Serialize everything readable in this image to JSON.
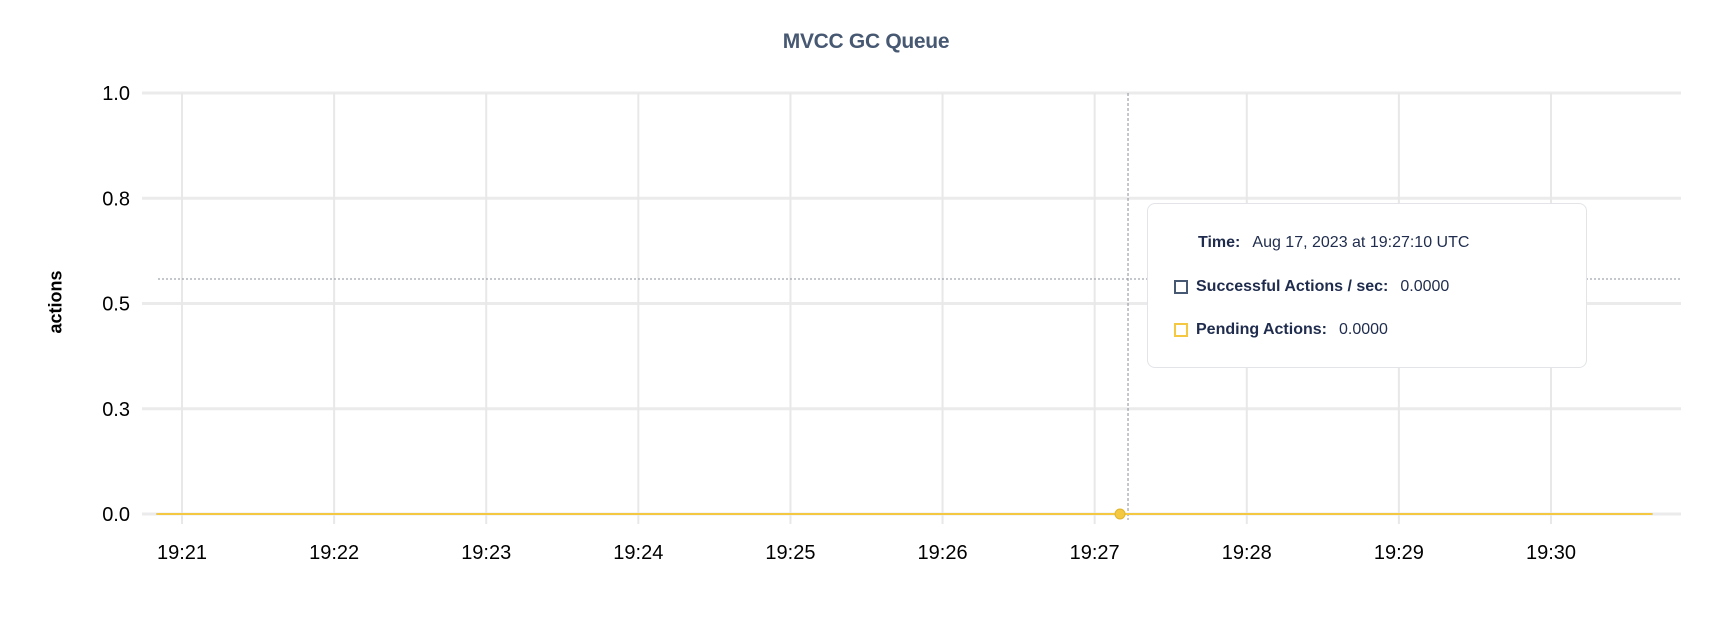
{
  "chart_data": {
    "type": "line",
    "title": "MVCC GC Queue",
    "ylabel": "actions",
    "xlabel": "",
    "ylim": [
      0,
      1
    ],
    "y_ticks": [
      0,
      0.25,
      0.5,
      0.75,
      1.0
    ],
    "y_tick_labels": [
      "0.0",
      "0.3",
      "0.5",
      "0.8",
      "1.0"
    ],
    "x_tick_labels": [
      "19:21",
      "19:22",
      "19:23",
      "19:24",
      "19:25",
      "19:26",
      "19:27",
      "19:28",
      "19:29",
      "19:30"
    ],
    "xlim": [
      "19:20:44",
      "19:30:50"
    ],
    "grid": true,
    "series": [
      {
        "name": "Successful Actions / sec",
        "color": "#475872",
        "x": [
          "19:20:50",
          "19:30:40"
        ],
        "y": [
          0,
          0
        ]
      },
      {
        "name": "Pending Actions",
        "color": "#f5c842",
        "x": [
          "19:20:50",
          "19:30:40"
        ],
        "y": [
          0,
          0
        ]
      }
    ],
    "hover": {
      "time": "19:27:10"
    }
  },
  "tooltip": {
    "time_label": "Time:",
    "time_value": "Aug 17, 2023 at 19:27:10 UTC",
    "rows": [
      {
        "label": "Successful Actions / sec:",
        "value": "0.0000",
        "color": "#475872"
      },
      {
        "label": "Pending Actions:",
        "value": "0.0000",
        "color": "#f5c842"
      }
    ]
  }
}
